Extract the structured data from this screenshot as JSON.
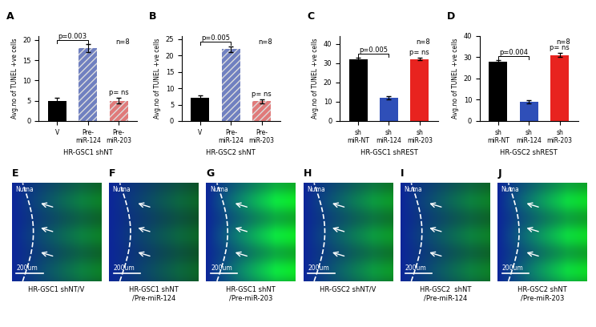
{
  "chart_data": [
    {
      "type": "bar",
      "panel": "A",
      "categories": [
        "V",
        "Pre-\nmiR-124",
        "Pre-\nmiR-203"
      ],
      "values": [
        5,
        18,
        5
      ],
      "errors": [
        0.8,
        1.0,
        0.7
      ],
      "colors": [
        "#000000",
        "#7080c0",
        "#e07a7a"
      ],
      "ylabel": "Avg.no of TUNEL +ve cells",
      "xlabel": "HR-GSC1 shNT",
      "ylim": [
        0,
        21
      ],
      "yticks": [
        0,
        5,
        10,
        15,
        20
      ],
      "annotations": [
        {
          "text": "p=0.003",
          "bracket": [
            0,
            1
          ]
        },
        {
          "text": "p= ns",
          "bar": 2
        },
        {
          "text": "n=8"
        }
      ]
    },
    {
      "type": "bar",
      "panel": "B",
      "categories": [
        "V",
        "Pre-\nmiR-124",
        "Pre-\nmiR-203"
      ],
      "values": [
        7,
        22,
        6
      ],
      "errors": [
        0.8,
        0.9,
        0.7
      ],
      "colors": [
        "#000000",
        "#7080c0",
        "#e07a7a"
      ],
      "ylabel": "Avg.no of TUNEL +ve cells",
      "xlabel": "HR-GSC2 shNT",
      "ylim": [
        0,
        26
      ],
      "yticks": [
        0,
        5,
        10,
        15,
        20,
        25
      ],
      "annotations": [
        {
          "text": "p=0.005",
          "bracket": [
            0,
            1
          ]
        },
        {
          "text": "p= ns",
          "bar": 2
        },
        {
          "text": "n=8"
        }
      ]
    },
    {
      "type": "bar",
      "panel": "C",
      "categories": [
        "sh\nmiR-NT",
        "sh\nmiR-124",
        "sh\nmiR-203"
      ],
      "values": [
        32,
        12,
        32
      ],
      "errors": [
        0.8,
        0.8,
        0.6
      ],
      "colors": [
        "#000000",
        "#2f4fb8",
        "#e8231f"
      ],
      "ylabel": "Avg.no of TUNEL +ve cells",
      "xlabel": "HR-GSC1 shREST",
      "ylim": [
        0,
        44
      ],
      "yticks": [
        0,
        10,
        20,
        30,
        40
      ],
      "annotations": [
        {
          "text": "p=0.005",
          "bracket": [
            0,
            1
          ]
        },
        {
          "text": "p= ns",
          "bar": 2
        },
        {
          "text": "n=8"
        }
      ]
    },
    {
      "type": "bar",
      "panel": "D",
      "categories": [
        "sh\nmiR-NT",
        "sh\nmiR-124",
        "sh\nmiR-203"
      ],
      "values": [
        28,
        9,
        31
      ],
      "errors": [
        0.7,
        0.8,
        0.9
      ],
      "colors": [
        "#000000",
        "#2f4fb8",
        "#e8231f"
      ],
      "ylabel": "Avg.no of TUNEL +ve cells",
      "xlabel": "HR-GSC2 shREST",
      "ylim": [
        0,
        40
      ],
      "yticks": [
        0,
        10,
        20,
        30,
        40
      ],
      "annotations": [
        {
          "text": "p=0.004",
          "bracket": [
            0,
            1
          ]
        },
        {
          "text": "p= ns",
          "bar": 2
        },
        {
          "text": "n=8"
        }
      ]
    }
  ],
  "image_panels": [
    {
      "panel": "E",
      "caption": "HR-GSC1 shNT/V",
      "stain_label": "Numa",
      "scale_bar": "200um"
    },
    {
      "panel": "F",
      "caption": "HR-GSC1 shNT\n/Pre-miR-124",
      "stain_label": "Numa",
      "scale_bar": "200um"
    },
    {
      "panel": "G",
      "caption": "HR-GSC1 shNT\n/Pre-miR-203",
      "stain_label": "Numa",
      "scale_bar": "200um"
    },
    {
      "panel": "H",
      "caption": "HR-GSC2 shNT/V",
      "stain_label": "Numa",
      "scale_bar": "200um"
    },
    {
      "panel": "I",
      "caption": "HR-GSC2  shNT\n/Pre-miR-124",
      "stain_label": "Numa",
      "scale_bar": "200um"
    },
    {
      "panel": "J",
      "caption": "HR-GSC2 shNT\n/Pre-miR-203",
      "stain_label": "Numa",
      "scale_bar": "200um"
    }
  ]
}
